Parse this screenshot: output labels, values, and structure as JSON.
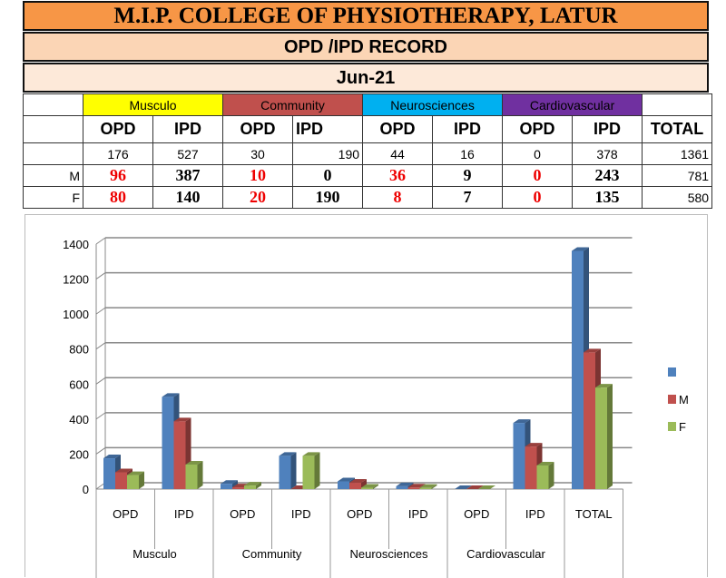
{
  "header": {
    "title": "M.I.P. COLLEGE OF PHYSIOTHERAPY, LATUR",
    "subtitle": "OPD /IPD RECORD",
    "month": "Jun-21"
  },
  "table": {
    "groups": [
      "Musculo",
      "Community",
      "Neurosciences",
      "Cardiovascular"
    ],
    "columns": [
      "OPD",
      "IPD",
      "OPD",
      "IPD",
      "OPD",
      "IPD",
      "OPD",
      "IPD",
      "TOTAL"
    ],
    "rows": [
      {
        "label": "",
        "values": [
          "176",
          "527",
          "30",
          "190",
          "44",
          "16",
          "0",
          "378",
          "1361"
        ]
      },
      {
        "label": "M",
        "values": [
          "96",
          "387",
          "10",
          "0",
          "36",
          "9",
          "0",
          "243",
          "781"
        ]
      },
      {
        "label": "F",
        "values": [
          "80",
          "140",
          "20",
          "190",
          "8",
          "7",
          "0",
          "135",
          "580"
        ]
      }
    ]
  },
  "chart_data": {
    "type": "bar",
    "categories": [
      "OPD",
      "IPD",
      "OPD",
      "IPD",
      "OPD",
      "IPD",
      "OPD",
      "IPD",
      "TOTAL"
    ],
    "groups": [
      {
        "name": "Musculo",
        "span": 2
      },
      {
        "name": "Community",
        "span": 2
      },
      {
        "name": "Neurosciences",
        "span": 2
      },
      {
        "name": "Cardiovascular",
        "span": 2
      },
      {
        "name": "",
        "span": 1
      }
    ],
    "series": [
      {
        "name": "",
        "color": "#4F81BD",
        "values": [
          176,
          527,
          30,
          190,
          44,
          16,
          0,
          378,
          1361
        ]
      },
      {
        "name": "M",
        "color": "#C0504D",
        "values": [
          96,
          387,
          10,
          0,
          36,
          9,
          0,
          243,
          781
        ]
      },
      {
        "name": "F",
        "color": "#9BBB59",
        "values": [
          80,
          140,
          20,
          190,
          8,
          7,
          0,
          135,
          580
        ]
      }
    ],
    "ylim": [
      0,
      1400
    ],
    "yticks": [
      "0",
      "200",
      "400",
      "600",
      "800",
      "1000",
      "1200",
      "1400"
    ],
    "legend": "right",
    "grid": true
  }
}
